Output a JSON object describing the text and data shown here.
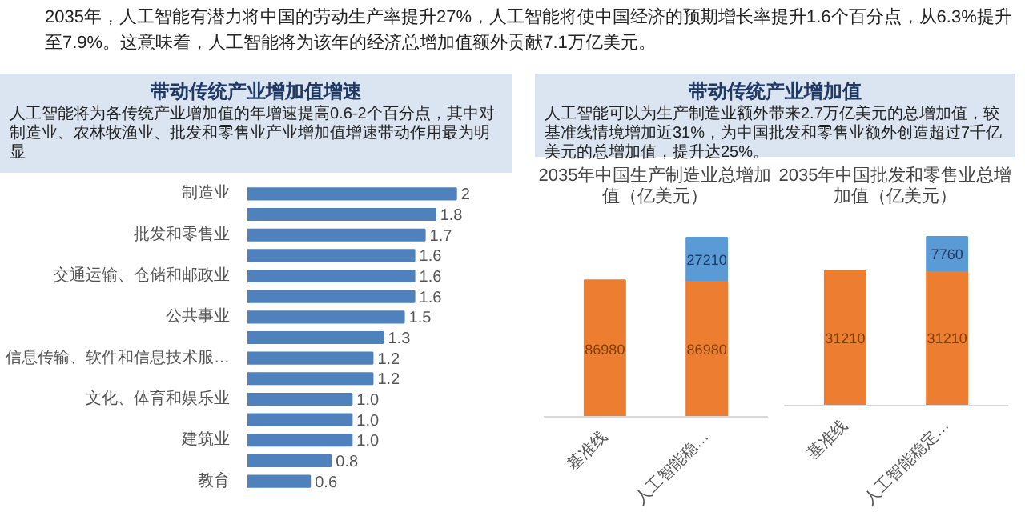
{
  "chart_data": [
    {
      "type": "other",
      "annotations": [
        "2035年，人工智能有潜力将中国的劳动生产率提升27%，人工智能将使中国经济的预期增长率提升1.6个百分点，从6.3%提升至7.9%。这意味着，人工智能将为该年的经济总增加值额外贡献7.1万亿美元。"
      ]
    },
    {
      "type": "bar",
      "orientation": "horizontal",
      "title": "带动传统产业增加值增速",
      "subtitle": "人工智能将为各传统产业增加值的年增速提高0.6-2个百分点，其中对制造业、农林牧渔业、批发和零售业产业增加值增速带动作用最为明显",
      "categories": [
        "制造业",
        null,
        "批发和零售业",
        null,
        "交通运输、仓储和邮政业",
        null,
        "公共事业",
        null,
        "信息传输、软件和信息技术服…",
        null,
        "文化、体育和娱乐业",
        null,
        "建筑业",
        null,
        "教育"
      ],
      "values": [
        2,
        1.8,
        1.7,
        1.6,
        1.6,
        1.6,
        1.5,
        1.3,
        1.2,
        1.2,
        1.0,
        1.0,
        1.0,
        0.8,
        0.6
      ],
      "color": "#4f81bd",
      "value_labels": [
        "2",
        "1.8",
        "1.7",
        "1.6",
        "1.6",
        "1.6",
        "1.5",
        "1.3",
        "1.2",
        "1.2",
        "1.0",
        "1.0",
        "1.0",
        "0.8",
        "0.6"
      ]
    },
    {
      "type": "other",
      "title": "带动传统产业增加值",
      "subtitle": "人工智能可以为生产制造业额外带来2.7万亿美元的总增加值，较基准线情境增加近31%，为中国批发和零售业额外创造超过7千亿美元的总增加值，提升达25%。"
    },
    {
      "type": "bar",
      "stacked": true,
      "title": "2035年中国生产制造业总增加值（亿美元）",
      "categories": [
        "基准线",
        "人工智能稳…"
      ],
      "series": [
        {
          "color": "#ed7d31",
          "values": [
            86980,
            86980
          ]
        },
        {
          "color": "#5b9bd5",
          "values": [
            null,
            27210
          ]
        }
      ],
      "data_labels": true
    },
    {
      "type": "bar",
      "stacked": true,
      "title": "2035年中国批发和零售业总增加值（亿美元）",
      "categories": [
        "基准线",
        "人工智能稳定…"
      ],
      "series": [
        {
          "color": "#ed7d31",
          "values": [
            31210,
            31210
          ]
        },
        {
          "color": "#5b9bd5",
          "values": [
            null,
            7760
          ]
        }
      ],
      "data_labels": true
    }
  ]
}
